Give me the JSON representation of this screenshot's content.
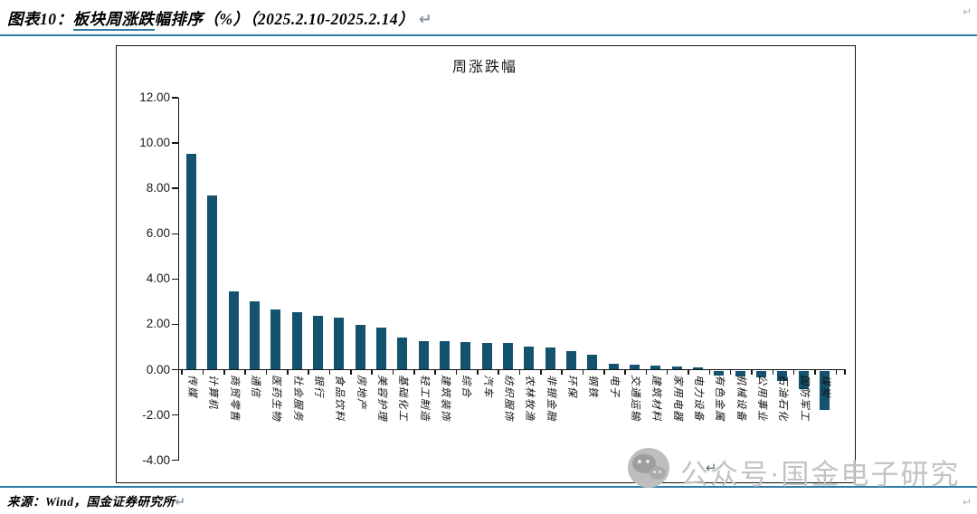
{
  "document": {
    "figure_label": "图表10：",
    "figure_title_link": "板块周涨跌",
    "figure_title_rest": "幅排序（%）（2025.2.10-2025.2.14）",
    "paragraph_mark": "↵",
    "source_text": "来源：Wind，国金证券研究所",
    "watermark_text": "公众号·国金电子研究",
    "accent_color": "#2E7CA3"
  },
  "chart_data": {
    "type": "bar",
    "title": "周涨跌幅",
    "xlabel": "",
    "ylabel": "",
    "ylim": [
      -4,
      12
    ],
    "yticks": [
      12,
      10,
      8,
      6,
      4,
      2,
      0,
      -2,
      -4
    ],
    "ytick_format": "two-decimals",
    "grid": false,
    "legend": false,
    "bar_color": "#14536F",
    "categories": [
      "传媒",
      "计算机",
      "商贸零售",
      "通信",
      "医药生物",
      "社会服务",
      "银行",
      "食品饮料",
      "房地产",
      "美容护理",
      "基础化工",
      "轻工制造",
      "建筑装饰",
      "综合",
      "汽车",
      "纺织服饰",
      "农林牧渔",
      "非银金融",
      "环保",
      "钢铁",
      "电子",
      "交通运输",
      "建筑材料",
      "家用电器",
      "电力设备",
      "有色金属",
      "机械设备",
      "公用事业",
      "石油石化",
      "国防军工",
      "煤炭"
    ],
    "values": [
      9.52,
      7.7,
      3.47,
      3.0,
      2.65,
      2.52,
      2.37,
      2.29,
      1.99,
      1.86,
      1.42,
      1.26,
      1.24,
      1.2,
      1.17,
      1.16,
      1.0,
      0.97,
      0.81,
      0.65,
      0.27,
      0.23,
      0.18,
      0.15,
      0.08,
      -0.2,
      -0.26,
      -0.3,
      -0.45,
      -0.8,
      -1.75
    ]
  }
}
